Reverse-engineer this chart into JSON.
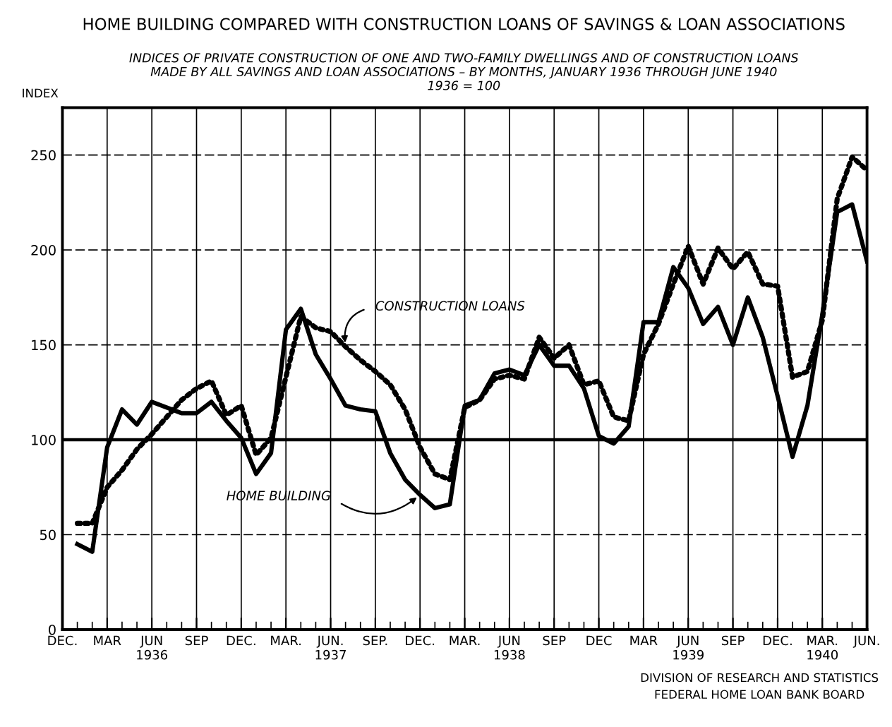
{
  "chart_data": {
    "type": "line",
    "title": "HOME BUILDING COMPARED WITH CONSTRUCTION LOANS OF SAVINGS & LOAN ASSOCIATIONS",
    "subtitle": "INDICES OF PRIVATE CONSTRUCTION OF ONE AND TWO-FAMILY DWELLINGS AND OF CONSTRUCTION LOANS\nMADE BY ALL SAVINGS AND LOAN ASSOCIATIONS – BY MONTHS, JANUARY 1936 THROUGH JUNE 1940\n1936 = 100",
    "ylabel": "INDEX",
    "x": [
      "1936-01",
      "1936-02",
      "1936-03",
      "1936-04",
      "1936-05",
      "1936-06",
      "1936-07",
      "1936-08",
      "1936-09",
      "1936-10",
      "1936-11",
      "1936-12",
      "1937-01",
      "1937-02",
      "1937-03",
      "1937-04",
      "1937-05",
      "1937-06",
      "1937-07",
      "1937-08",
      "1937-09",
      "1937-10",
      "1937-11",
      "1937-12",
      "1938-01",
      "1938-02",
      "1938-03",
      "1938-04",
      "1938-05",
      "1938-06",
      "1938-07",
      "1938-08",
      "1938-09",
      "1938-10",
      "1938-11",
      "1938-12",
      "1939-01",
      "1939-02",
      "1939-03",
      "1939-04",
      "1939-05",
      "1939-06",
      "1939-07",
      "1939-08",
      "1939-09",
      "1939-10",
      "1939-11",
      "1939-12",
      "1940-01",
      "1940-02",
      "1940-03",
      "1940-04",
      "1940-05",
      "1940-06"
    ],
    "series": [
      {
        "name": "HOME BUILDING",
        "color": "#000000",
        "line_style": "solid",
        "values": [
          45,
          41,
          96,
          116,
          108,
          120,
          117,
          114,
          114,
          120,
          110,
          101,
          82,
          93,
          158,
          169,
          145,
          132,
          118,
          116,
          115,
          93,
          79,
          71,
          64,
          66,
          118,
          121,
          135,
          137,
          134,
          150,
          139,
          139,
          127,
          102,
          98,
          107,
          162,
          162,
          191,
          180,
          161,
          170,
          150,
          175,
          154,
          123,
          91,
          118,
          166,
          220,
          224,
          194
        ]
      },
      {
        "name": "CONSTRUCTION LOANS",
        "color": "#000000",
        "line_style": "dotted",
        "values": [
          56,
          56,
          75,
          84,
          95,
          103,
          112,
          121,
          127,
          131,
          113,
          118,
          92,
          101,
          133,
          165,
          159,
          157,
          149,
          142,
          136,
          129,
          116,
          96,
          82,
          79,
          117,
          121,
          132,
          134,
          132,
          154,
          143,
          150,
          129,
          131,
          112,
          110,
          145,
          161,
          182,
          202,
          182,
          201,
          190,
          199,
          182,
          181,
          133,
          136,
          163,
          227,
          249,
          242
        ]
      }
    ],
    "xlim": [
      "1935-12",
      "1940-06"
    ],
    "xticks": [
      {
        "value": "1935-12",
        "label": "DEC."
      },
      {
        "value": "1936-03",
        "label": "MAR"
      },
      {
        "value": "1936-06",
        "label": "JUN\n1936"
      },
      {
        "value": "1936-09",
        "label": "SEP"
      },
      {
        "value": "1936-12",
        "label": "DEC."
      },
      {
        "value": "1937-03",
        "label": "MAR."
      },
      {
        "value": "1937-06",
        "label": "JUN.\n1937"
      },
      {
        "value": "1937-09",
        "label": "SEP."
      },
      {
        "value": "1937-12",
        "label": "DEC."
      },
      {
        "value": "1938-03",
        "label": "MAR."
      },
      {
        "value": "1938-06",
        "label": "JUN\n1938"
      },
      {
        "value": "1938-09",
        "label": "SEP"
      },
      {
        "value": "1938-12",
        "label": "DEC"
      },
      {
        "value": "1939-03",
        "label": "MAR"
      },
      {
        "value": "1939-06",
        "label": "JUN\n1939"
      },
      {
        "value": "1939-09",
        "label": "SEP"
      },
      {
        "value": "1939-12",
        "label": "DEC."
      },
      {
        "value": "1940-03",
        "label": "MAR.\n1940"
      },
      {
        "value": "1940-06",
        "label": "JUN."
      }
    ],
    "ylim": [
      0,
      275
    ],
    "yticks": [
      0,
      50,
      100,
      150,
      200,
      250
    ],
    "grid": true,
    "legend": false,
    "marker": "none",
    "ref_lines": [
      {
        "axis": "y",
        "value": 100,
        "color": "#000000",
        "line_style": "solid"
      }
    ],
    "annotations": [
      "DIVISION OF RESEARCH AND STATISTICS\nFEDERAL HOME LOAN BANK BOARD"
    ]
  }
}
